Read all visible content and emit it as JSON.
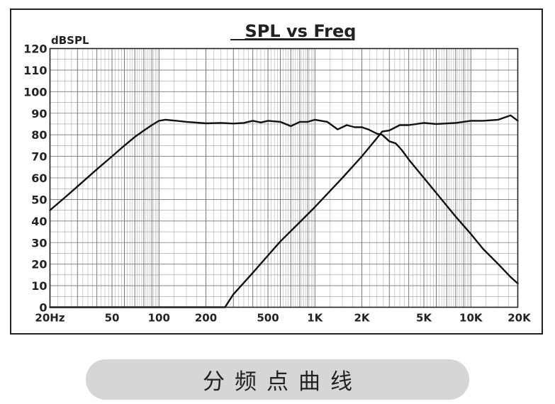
{
  "caption": "分频点曲线",
  "chart_data": {
    "type": "line",
    "title": "SPL vs Freq",
    "ylabel": "dBSPL",
    "xlabel": "",
    "x_scale": "log",
    "xlim": [
      20,
      20000
    ],
    "ylim": [
      0,
      120
    ],
    "grid": true,
    "x_minor_ticks": [
      20,
      30,
      40,
      50,
      60,
      70,
      80,
      90,
      100,
      200,
      300,
      400,
      500,
      600,
      700,
      800,
      900,
      1000,
      2000,
      3000,
      4000,
      5000,
      6000,
      7000,
      8000,
      9000,
      10000,
      20000
    ],
    "x_tick_labels": [
      {
        "value": 20,
        "label": "20Hz"
      },
      {
        "value": 50,
        "label": "50"
      },
      {
        "value": 100,
        "label": "100"
      },
      {
        "value": 200,
        "label": "200"
      },
      {
        "value": 500,
        "label": "500"
      },
      {
        "value": 1000,
        "label": "1K"
      },
      {
        "value": 2000,
        "label": "2K"
      },
      {
        "value": 5000,
        "label": "5K"
      },
      {
        "value": 10000,
        "label": "10K"
      },
      {
        "value": 20000,
        "label": "20K"
      }
    ],
    "y_ticks": [
      0,
      10,
      20,
      30,
      40,
      50,
      60,
      70,
      80,
      90,
      100,
      110,
      120
    ],
    "series": [
      {
        "x": [
          20,
          25,
          30,
          40,
          50,
          60,
          70,
          80,
          90,
          100,
          110,
          130,
          150,
          200,
          250,
          300,
          350,
          400,
          450,
          500,
          600,
          700,
          800,
          900,
          1000,
          1200,
          1400,
          1600,
          1800,
          2000,
          2200,
          2500,
          2700,
          3000,
          3300,
          3600,
          4000,
          5000,
          6000,
          8000,
          10000,
          12000,
          15000,
          18000,
          20000
        ],
        "y": [
          45,
          51,
          56,
          64,
          70,
          75,
          79,
          82,
          84.5,
          86.5,
          87,
          86.5,
          86,
          85.3,
          85.5,
          85.2,
          85.5,
          86.5,
          85.7,
          86.5,
          86,
          84,
          86,
          86,
          87,
          86,
          82.5,
          84.5,
          83.5,
          83.5,
          82.5,
          80.5,
          80,
          77,
          76,
          73,
          68.5,
          60,
          53,
          42,
          34,
          27,
          20,
          14,
          11
        ]
      },
      {
        "x": [
          20,
          100,
          250,
          265,
          300,
          400,
          500,
          600,
          800,
          1000,
          1500,
          2000,
          2500,
          2700,
          3000,
          3500,
          4000,
          5000,
          6000,
          8000,
          10000,
          12000,
          15000,
          18000,
          20000
        ],
        "y": [
          0,
          0,
          0,
          0,
          6,
          16,
          24,
          30.5,
          39.5,
          46.5,
          60,
          70,
          78.5,
          81.5,
          82,
          84.5,
          84.5,
          85.5,
          85,
          85.5,
          86.5,
          86.5,
          87,
          89,
          86.5
        ]
      }
    ]
  }
}
